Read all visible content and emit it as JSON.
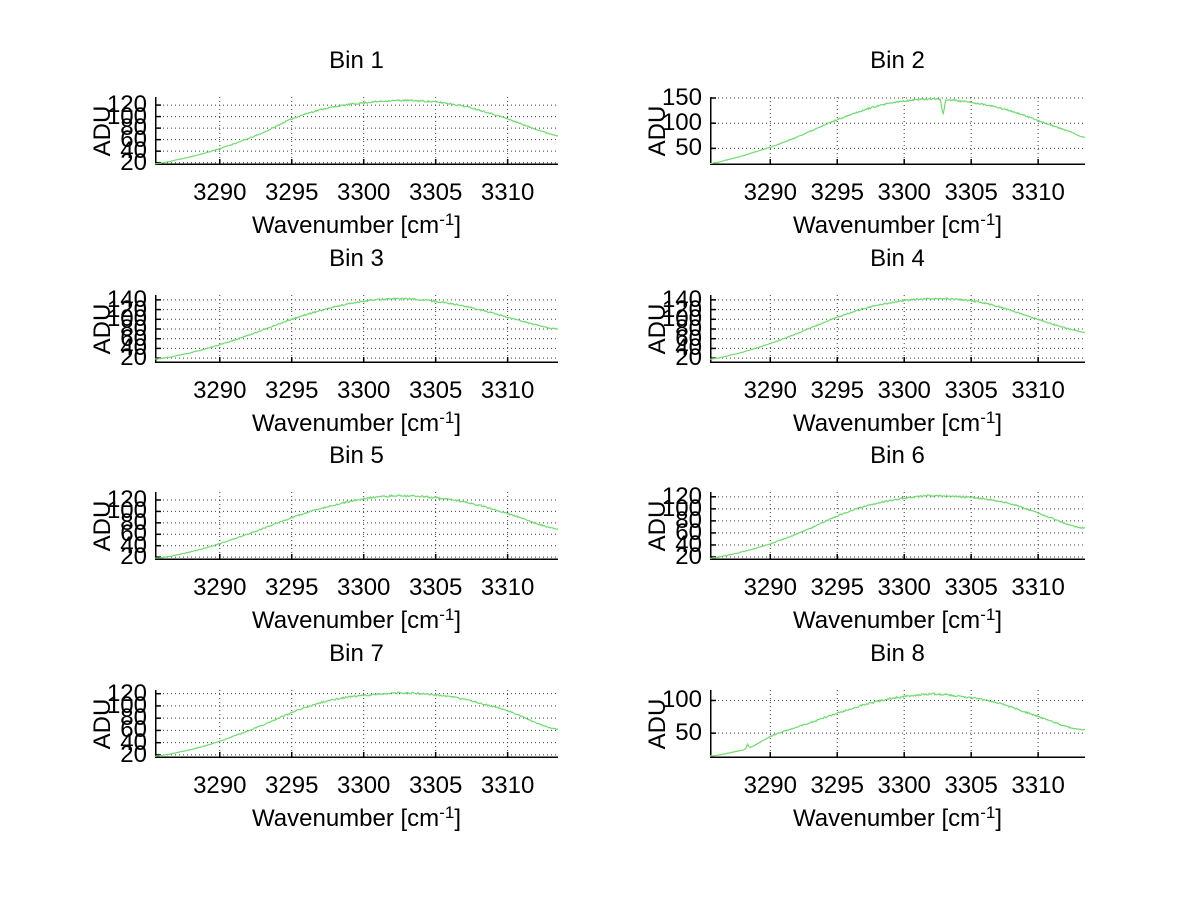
{
  "figure": {
    "background": "#ffffff",
    "description": "Eight stacked spectra subplots, Bin 1 through Bin 8"
  },
  "chart_data": {
    "type": "line",
    "xlabel": {
      "text": "Wavenumber [cm",
      "sup": "-1",
      "tail": "]"
    },
    "ylabel": "ADU",
    "xlim": [
      3285.5,
      3313.5
    ],
    "xticks": [
      3290,
      3295,
      3300,
      3305,
      3310
    ],
    "line_color": "#72db72",
    "grid": "dotted",
    "grid_color": "#3c3c3c",
    "axis_color": "#000000",
    "legend": "none",
    "subplots": [
      {
        "title": "Bin 1",
        "ylim": [
          16,
          134
        ],
        "yticks": [
          20,
          40,
          60,
          80,
          100,
          120
        ],
        "noise": 1.2,
        "seed": 11,
        "spikes": [],
        "points": [
          [
            3285.5,
            18
          ],
          [
            3287,
            25
          ],
          [
            3289,
            37
          ],
          [
            3291,
            53
          ],
          [
            3293,
            72
          ],
          [
            3295,
            96
          ],
          [
            3297,
            112
          ],
          [
            3299,
            121
          ],
          [
            3301,
            126
          ],
          [
            3302.5,
            128
          ],
          [
            3304,
            127
          ],
          [
            3305.5,
            124
          ],
          [
            3307,
            118
          ],
          [
            3308.5,
            108
          ],
          [
            3310,
            96
          ],
          [
            3311.5,
            82
          ],
          [
            3313.5,
            67
          ]
        ]
      },
      {
        "title": "Bin 2",
        "ylim": [
          17,
          152
        ],
        "yticks": [
          50,
          100,
          150
        ],
        "noise": 1.4,
        "seed": 22,
        "spikes": [
          [
            3302.9,
            -31,
            0.2
          ]
        ],
        "points": [
          [
            3285.5,
            20
          ],
          [
            3287,
            29
          ],
          [
            3289,
            44
          ],
          [
            3291,
            62
          ],
          [
            3293,
            84
          ],
          [
            3295,
            107
          ],
          [
            3297,
            126
          ],
          [
            3298.5,
            137
          ],
          [
            3300,
            144
          ],
          [
            3301,
            147
          ],
          [
            3302,
            148
          ],
          [
            3303.5,
            146
          ],
          [
            3305,
            141
          ],
          [
            3306.5,
            134
          ],
          [
            3308,
            124
          ],
          [
            3309.5,
            110
          ],
          [
            3311,
            96
          ],
          [
            3312.5,
            82
          ],
          [
            3313.5,
            72
          ]
        ]
      },
      {
        "title": "Bin 3",
        "ylim": [
          10,
          150
        ],
        "yticks": [
          20,
          40,
          60,
          80,
          100,
          120,
          140
        ],
        "noise": 1.5,
        "seed": 33,
        "spikes": [],
        "points": [
          [
            3285.5,
            18
          ],
          [
            3287,
            25
          ],
          [
            3289,
            39
          ],
          [
            3291,
            57
          ],
          [
            3293,
            78
          ],
          [
            3295,
            100
          ],
          [
            3297,
            118
          ],
          [
            3299,
            132
          ],
          [
            3300.5,
            139
          ],
          [
            3302,
            142
          ],
          [
            3303.5,
            141
          ],
          [
            3305,
            137
          ],
          [
            3306.5,
            130
          ],
          [
            3308,
            120
          ],
          [
            3309.5,
            108
          ],
          [
            3311,
            96
          ],
          [
            3312.5,
            85
          ],
          [
            3313.5,
            80
          ]
        ]
      },
      {
        "title": "Bin 4",
        "ylim": [
          10,
          150
        ],
        "yticks": [
          20,
          40,
          60,
          80,
          100,
          120,
          140
        ],
        "noise": 1.3,
        "seed": 44,
        "spikes": [],
        "points": [
          [
            3285.5,
            18
          ],
          [
            3287,
            26
          ],
          [
            3289,
            41
          ],
          [
            3291,
            60
          ],
          [
            3293,
            82
          ],
          [
            3295,
            104
          ],
          [
            3297,
            122
          ],
          [
            3299,
            134
          ],
          [
            3300.5,
            140
          ],
          [
            3302,
            142
          ],
          [
            3303.5,
            142
          ],
          [
            3305,
            138
          ],
          [
            3306.5,
            130
          ],
          [
            3308,
            118
          ],
          [
            3309.5,
            104
          ],
          [
            3311,
            91
          ],
          [
            3312.5,
            79
          ],
          [
            3313.5,
            73
          ]
        ]
      },
      {
        "title": "Bin 5",
        "ylim": [
          15,
          134
        ],
        "yticks": [
          20,
          40,
          60,
          80,
          100,
          120
        ],
        "noise": 1.3,
        "seed": 55,
        "spikes": [],
        "points": [
          [
            3285.5,
            18
          ],
          [
            3287,
            24
          ],
          [
            3289,
            36
          ],
          [
            3291,
            52
          ],
          [
            3293,
            70
          ],
          [
            3295,
            89
          ],
          [
            3297,
            105
          ],
          [
            3299,
            117
          ],
          [
            3300.5,
            124
          ],
          [
            3302,
            127
          ],
          [
            3303.5,
            127
          ],
          [
            3305,
            124
          ],
          [
            3306.5,
            119
          ],
          [
            3308,
            111
          ],
          [
            3309.5,
            100
          ],
          [
            3311,
            88
          ],
          [
            3312.5,
            75
          ],
          [
            3313.5,
            69
          ]
        ]
      },
      {
        "title": "Bin 6",
        "ylim": [
          15,
          128
        ],
        "yticks": [
          20,
          40,
          60,
          80,
          100,
          120
        ],
        "noise": 1.2,
        "seed": 66,
        "spikes": [],
        "points": [
          [
            3285.5,
            18
          ],
          [
            3287,
            24
          ],
          [
            3289,
            35
          ],
          [
            3291,
            50
          ],
          [
            3293,
            68
          ],
          [
            3295,
            88
          ],
          [
            3297,
            104
          ],
          [
            3299,
            114
          ],
          [
            3300.5,
            119
          ],
          [
            3302,
            122
          ],
          [
            3303.5,
            121
          ],
          [
            3305,
            119
          ],
          [
            3306.5,
            115
          ],
          [
            3308,
            108
          ],
          [
            3309.5,
            97
          ],
          [
            3311,
            85
          ],
          [
            3312.5,
            72
          ],
          [
            3313.5,
            68
          ]
        ]
      },
      {
        "title": "Bin 7",
        "ylim": [
          15,
          126
        ],
        "yticks": [
          20,
          40,
          60,
          80,
          100,
          120
        ],
        "noise": 1.2,
        "seed": 77,
        "spikes": [],
        "points": [
          [
            3285.5,
            18
          ],
          [
            3287,
            24
          ],
          [
            3289,
            35
          ],
          [
            3291,
            51
          ],
          [
            3293,
            69
          ],
          [
            3295,
            89
          ],
          [
            3297,
            105
          ],
          [
            3298.5,
            113
          ],
          [
            3300,
            117
          ],
          [
            3301.5,
            120
          ],
          [
            3303,
            121
          ],
          [
            3304.5,
            119
          ],
          [
            3306,
            115
          ],
          [
            3307.5,
            108
          ],
          [
            3309,
            99
          ],
          [
            3310.5,
            88
          ],
          [
            3312,
            72
          ],
          [
            3313.5,
            62
          ]
        ]
      },
      {
        "title": "Bin 8",
        "ylim": [
          12,
          116
        ],
        "yticks": [
          50,
          100
        ],
        "noise": 1.3,
        "seed": 88,
        "spikes": [
          [
            3288.3,
            7,
            0.15
          ]
        ],
        "points": [
          [
            3285.5,
            15
          ],
          [
            3287,
            20
          ],
          [
            3288.5,
            28
          ],
          [
            3290,
            45
          ],
          [
            3291.5,
            56
          ],
          [
            3293,
            66
          ],
          [
            3294.5,
            77
          ],
          [
            3296,
            87
          ],
          [
            3297.5,
            96
          ],
          [
            3299,
            103
          ],
          [
            3300.5,
            107
          ],
          [
            3302,
            110
          ],
          [
            3303.5,
            108
          ],
          [
            3305,
            104
          ],
          [
            3306.5,
            99
          ],
          [
            3308,
            90
          ],
          [
            3309.5,
            79
          ],
          [
            3311,
            68
          ],
          [
            3312.5,
            58
          ],
          [
            3313.5,
            55
          ]
        ]
      }
    ]
  }
}
